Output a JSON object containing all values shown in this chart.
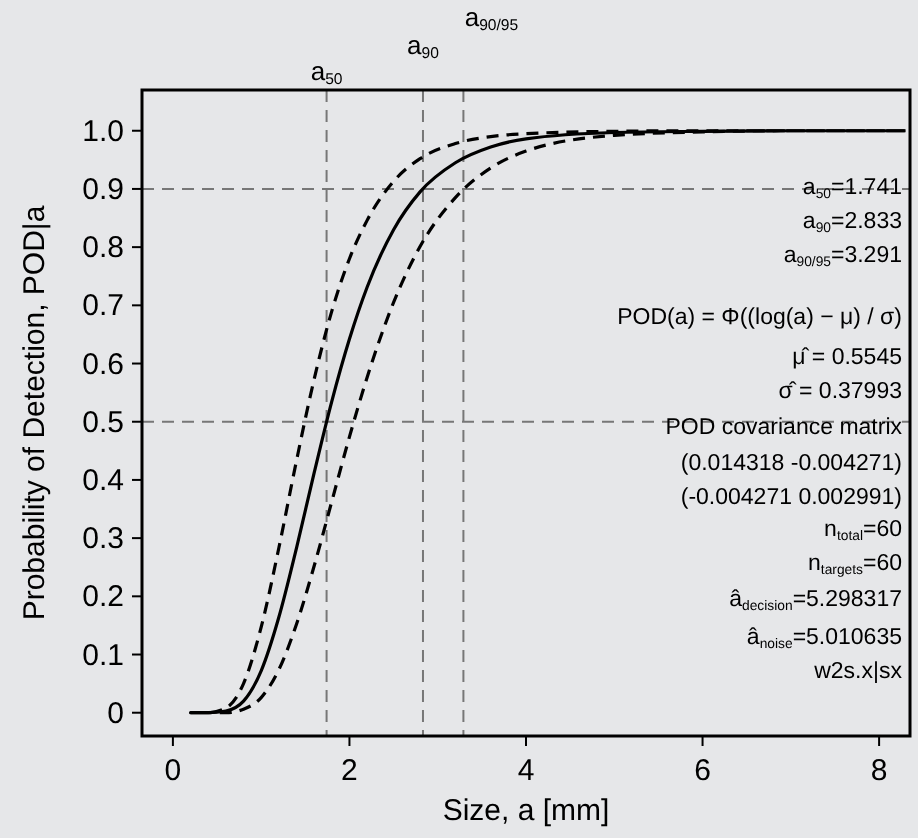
{
  "chart_data": {
    "type": "line",
    "xlabel": "Size, a [mm]",
    "ylabel": "Probability of Detection, POD|a",
    "x": [
      0.2,
      0.4,
      0.6,
      0.8,
      1.0,
      1.2,
      1.4,
      1.6,
      1.8,
      2.0,
      2.2,
      2.5,
      2.8,
      3.2,
      3.6,
      4,
      5,
      6,
      7,
      8.3
    ],
    "series": [
      {
        "color": "#000000",
        "line_style": "solid",
        "values": [
          0,
          0,
          0.003,
          0.02,
          0.072,
          0.164,
          0.283,
          0.412,
          0.535,
          0.642,
          0.731,
          0.83,
          0.895,
          0.945,
          0.972,
          0.986,
          0.997,
          0.999,
          1,
          1
        ],
        "upper": [
          0,
          0,
          0.008,
          0.05,
          0.147,
          0.283,
          0.433,
          0.573,
          0.69,
          0.78,
          0.846,
          0.913,
          0.952,
          0.978,
          0.99,
          0.995,
          0.999,
          1,
          1,
          1
        ],
        "lower": [
          0,
          0,
          0,
          0.006,
          0.026,
          0.074,
          0.152,
          0.252,
          0.363,
          0.474,
          0.576,
          0.705,
          0.801,
          0.885,
          0.936,
          0.965,
          0.992,
          0.998,
          1,
          1
        ]
      }
    ],
    "xlim": [
      -0.35,
      8.35
    ],
    "ylim": [
      -0.04,
      1.07
    ],
    "xticks": [
      0,
      2,
      4,
      6,
      8
    ],
    "yticks": [
      0,
      0.1,
      0.2,
      0.3,
      0.4,
      0.5,
      0.6,
      0.7,
      0.8,
      0.9,
      {
        "value": 1,
        "label": "1.0"
      }
    ],
    "ref_lines": [
      {
        "axis": "x",
        "value": 1.741,
        "label": "a$_{50}$",
        "color": "#777777",
        "line_style": "dashed"
      },
      {
        "axis": "x",
        "value": 2.833,
        "label": "a$_{90}$",
        "color": "#777777",
        "line_style": "dashed"
      },
      {
        "axis": "x",
        "value": 3.291,
        "label": "a$_{90/95}$",
        "color": "#777777",
        "line_style": "dashed"
      },
      {
        "axis": "y",
        "value": 0.9,
        "color": "#777777",
        "line_style": "dashed"
      },
      {
        "axis": "y",
        "value": 0.5,
        "color": "#777777",
        "line_style": "dashed"
      }
    ],
    "annotations": [
      "a$_{50}$=1.741",
      "a$_{90}$=2.833",
      "a$_{90/95}$=3.291",
      "POD(a) = Φ((log(a) − μ) / σ)",
      "μ̂ = 0.5545",
      "σ̂ = 0.37993",
      "POD covariance matrix",
      "(0.014318   -0.004271)",
      "(-0.004271   0.002991)",
      "n$_{total}$=60",
      "n$_{targets}$=60",
      "â$_{decision}$=5.298317",
      "â$_{noise}$=5.010635",
      "w2s.x|sx"
    ],
    "grid": false,
    "marker": "none"
  }
}
